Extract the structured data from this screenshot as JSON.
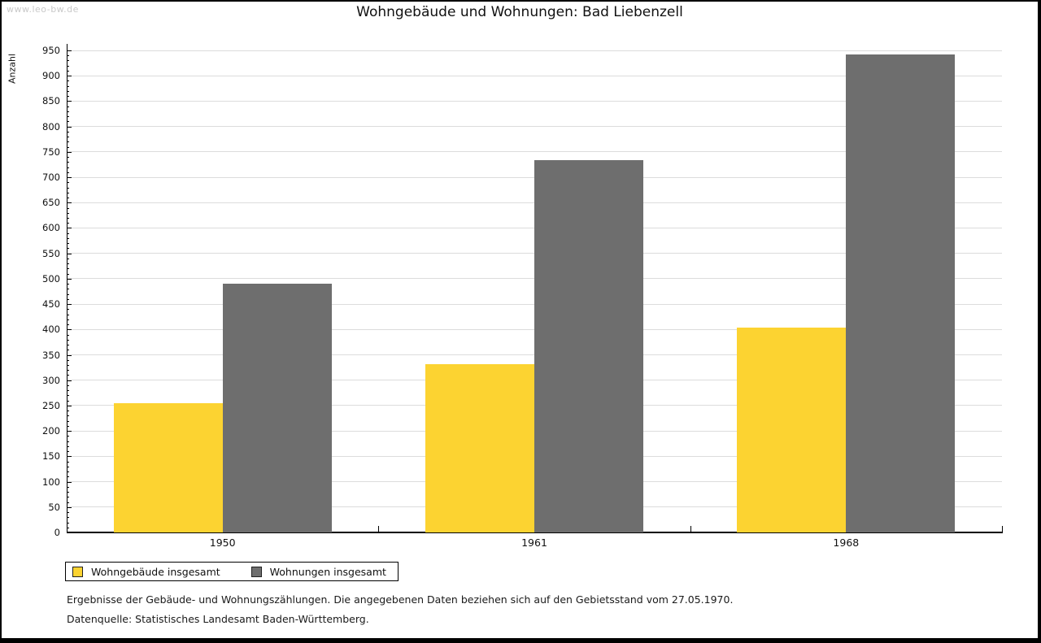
{
  "watermark": "www.leo-bw.de",
  "title": "Wohngebäude und Wohnungen: Bad Liebenzell",
  "ylabel": "Anzahl",
  "legend": {
    "items": [
      {
        "label": "Wohngebäude insgesamt",
        "color": "#FCD331"
      },
      {
        "label": "Wohnungen insgesamt",
        "color": "#6E6E6E"
      }
    ]
  },
  "footer": {
    "line1": "Ergebnisse der Gebäude- und Wohnungszählungen. Die angegebenen Daten beziehen sich auf den Gebietsstand vom 27.05.1970.",
    "line2": "Datenquelle: Statistisches Landesamt Baden-Württemberg."
  },
  "chart_data": {
    "type": "bar",
    "title": "Wohngebäude und Wohnungen: Bad Liebenzell",
    "xlabel": "",
    "ylabel": "Anzahl",
    "categories": [
      "1950",
      "1961",
      "1968"
    ],
    "series": [
      {
        "name": "Wohngebäude insgesamt",
        "color": "#FCD331",
        "values": [
          255,
          331,
          403
        ]
      },
      {
        "name": "Wohnungen insgesamt",
        "color": "#6E6E6E",
        "values": [
          490,
          733,
          942
        ]
      }
    ],
    "ylim": [
      0,
      950
    ],
    "ytick_step": 50,
    "minor_tick_step": 10,
    "grid": "horizontal",
    "gridline_color": "#DCDCDC",
    "legend_position": "bottom-left"
  }
}
